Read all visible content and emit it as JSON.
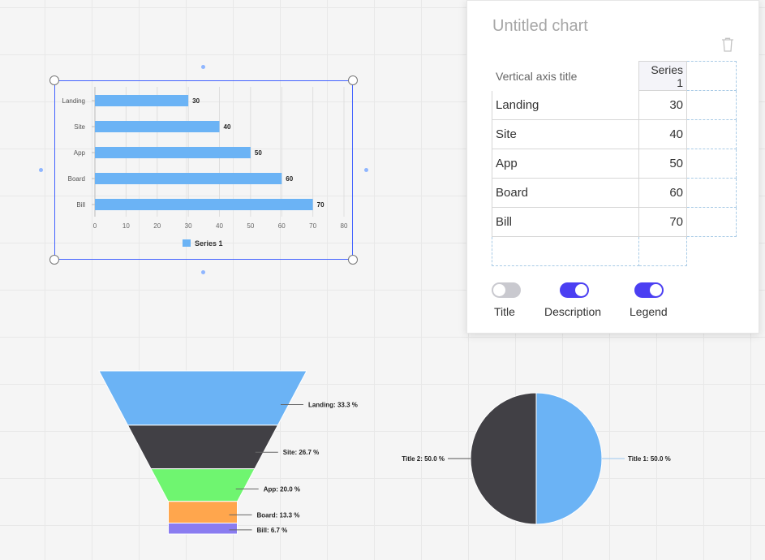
{
  "editor": {
    "title": "Untitled chart",
    "table": {
      "corner_label": "Vertical axis title",
      "series_header": "Series 1",
      "rows": [
        {
          "label": "Landing",
          "value": "30"
        },
        {
          "label": "Site",
          "value": "40"
        },
        {
          "label": "App",
          "value": "50"
        },
        {
          "label": "Board",
          "value": "60"
        },
        {
          "label": "Bill",
          "value": "70"
        }
      ]
    },
    "toggles": [
      {
        "label": "Title",
        "on": false
      },
      {
        "label": "Description",
        "on": true
      },
      {
        "label": "Legend",
        "on": true
      }
    ]
  },
  "colors": {
    "accent": "#4b3ff2",
    "selection": "#4262ff",
    "bar": "#6bb3f5",
    "dark": "#414045"
  },
  "chart_data": [
    {
      "type": "bar",
      "orientation": "horizontal",
      "categories": [
        "Landing",
        "Site",
        "App",
        "Board",
        "Bill"
      ],
      "series": [
        {
          "name": "Series 1",
          "values": [
            30,
            40,
            50,
            60,
            70
          ]
        }
      ],
      "xlim": [
        0,
        80
      ],
      "xticks": [
        0,
        10,
        20,
        30,
        40,
        50,
        60,
        70,
        80
      ],
      "grid": true,
      "legend": "bottom"
    },
    {
      "type": "funnel",
      "categories": [
        "Landing",
        "Site",
        "App",
        "Board",
        "Bill"
      ],
      "values": [
        33.3,
        26.7,
        20.0,
        13.3,
        6.7
      ],
      "labels": [
        "Landing: 33.3 %",
        "Site: 26.7 %",
        "App: 20.0 %",
        "Board: 13.3 %",
        "Bill: 6.7 %"
      ],
      "colors": [
        "#6bb3f5",
        "#414045",
        "#6ff570",
        "#ffa64d",
        "#8a7cf0"
      ]
    },
    {
      "type": "pie",
      "categories": [
        "Title 1",
        "Title 2"
      ],
      "values": [
        50.0,
        50.0
      ],
      "labels": [
        "Title 1: 50.0 %",
        "Title 2: 50.0 %"
      ],
      "colors": [
        "#6bb3f5",
        "#414045"
      ]
    }
  ]
}
